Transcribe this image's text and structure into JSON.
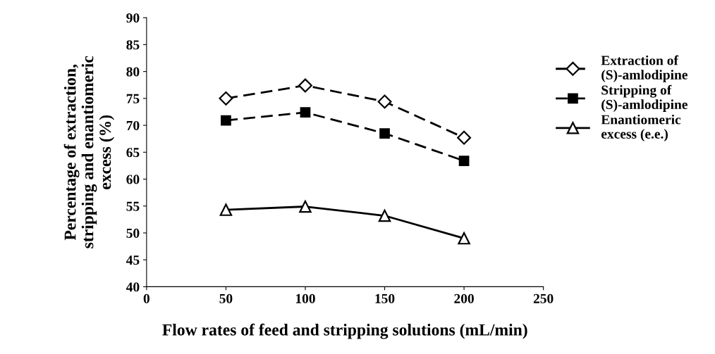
{
  "chart_data": {
    "type": "line",
    "xlabel": "Flow rates of feed and stripping solutions (mL/min)",
    "ylabel": "Percentage of extraction,\nstripping and enantiomeric\nexcess (%)",
    "x": [
      50,
      100,
      150,
      200
    ],
    "series": [
      {
        "name": "Extraction of\n(S)-amlodipine",
        "color": "#000000",
        "values": [
          75,
          77.4,
          74.4,
          67.7
        ],
        "marker": "diamond",
        "line_style": "dashed"
      },
      {
        "name": "Stripping of\n(S)-amlodipine",
        "color": "#000000",
        "values": [
          70.9,
          72.4,
          68.5,
          63.4
        ],
        "marker": "square",
        "line_style": "dashed"
      },
      {
        "name": "Enantiomeric\nexcess (e.e.)",
        "color": "#000000",
        "values": [
          54.3,
          54.9,
          53.2,
          49.0
        ],
        "marker": "triangle",
        "line_style": "solid"
      }
    ],
    "xlim": [
      0,
      250
    ],
    "xticks": [
      0,
      50,
      100,
      150,
      200,
      250
    ],
    "ylim": [
      40,
      90
    ],
    "yticks": [
      40,
      45,
      50,
      55,
      60,
      65,
      70,
      75,
      80,
      85,
      90
    ],
    "grid": false,
    "legend": "right"
  }
}
